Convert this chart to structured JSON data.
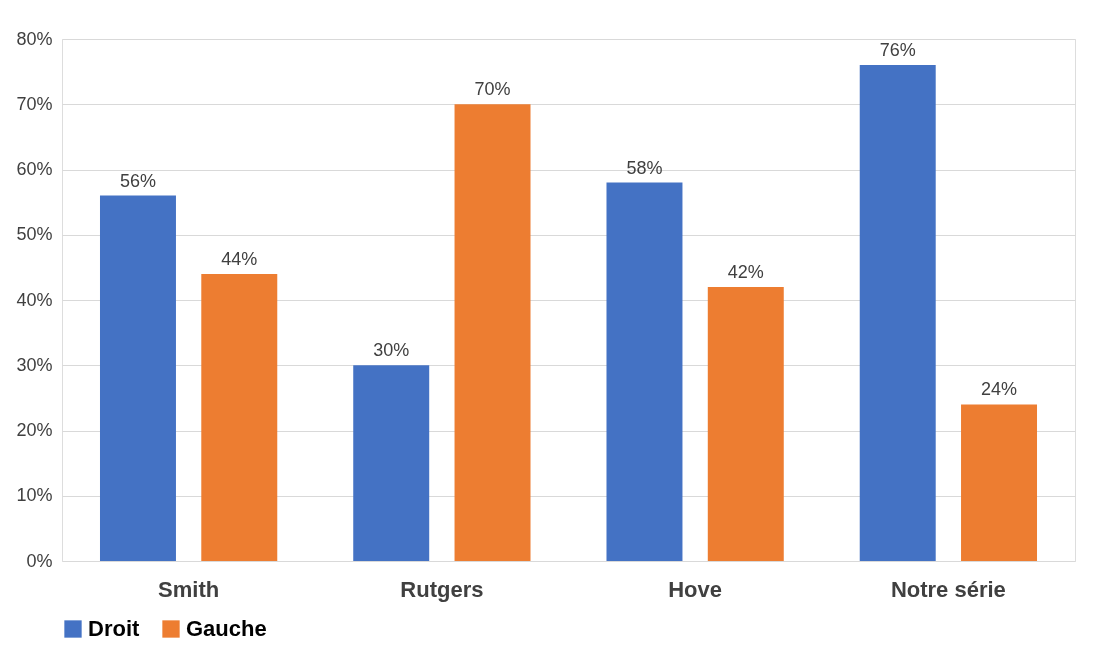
{
  "chart_data": {
    "type": "bar",
    "categories": [
      "Smith",
      "Rutgers",
      "Hove",
      "Notre série"
    ],
    "series": [
      {
        "name": "Droit",
        "color": "#4472c4",
        "values": [
          56,
          30,
          58,
          76
        ],
        "value_labels": [
          "56%",
          "30%",
          "58%",
          "76%"
        ]
      },
      {
        "name": "Gauche",
        "color": "#ed7d31",
        "values": [
          44,
          70,
          42,
          24
        ],
        "value_labels": [
          "44%",
          "70%",
          "42%",
          "24%"
        ]
      }
    ],
    "ylim": [
      0,
      80
    ],
    "yticks": [
      {
        "value": 0,
        "label": "0%"
      },
      {
        "value": 10,
        "label": "10%"
      },
      {
        "value": 20,
        "label": "20%"
      },
      {
        "value": 30,
        "label": "30%"
      },
      {
        "value": 40,
        "label": "40%"
      },
      {
        "value": 50,
        "label": "50%"
      },
      {
        "value": 60,
        "label": "60%"
      },
      {
        "value": 70,
        "label": "70%"
      },
      {
        "value": 80,
        "label": "80%"
      }
    ],
    "grid": "y",
    "legend": "bottom"
  }
}
